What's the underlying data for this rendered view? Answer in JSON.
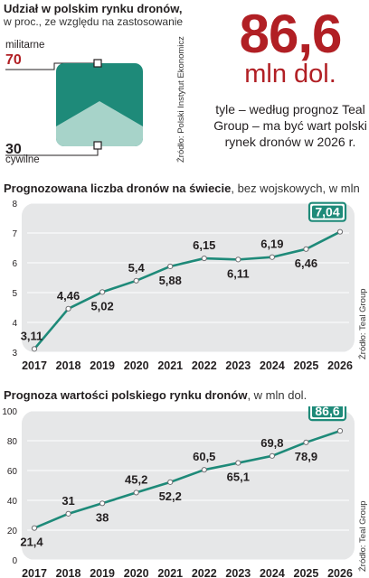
{
  "share": {
    "title_bold": "Udział w polskim rynku dronów,",
    "subtitle": "w proc., ze względu na zastosowanie",
    "military_label": "militarne",
    "military_value": "70",
    "civil_value": "30",
    "civil_label": "cywilne",
    "source": "Źródło: Polski Instytut Ekonomiczny",
    "colors": {
      "military": "#1e8a79",
      "civil": "#a7d3c9",
      "accent": "#b11f24"
    }
  },
  "headline": {
    "number": "86,6",
    "unit": "mln dol.",
    "description": "tyle – według prognoz Teal Group – ma być wart polski rynek dronów w 2026 r."
  },
  "chart1": {
    "title_bold": "Prognozowana liczba dronów na świecie",
    "title_rest": ", bez wojskowych, w mln",
    "source": "Źródło: Teal Group"
  },
  "chart2": {
    "title_bold": "Prognoza wartości polskiego rynku dronów",
    "title_rest": ", w mln dol.",
    "source": "Źródło: Teal Group"
  },
  "chart_data": [
    {
      "type": "line",
      "x": [
        2017,
        2018,
        2019,
        2020,
        2021,
        2022,
        2023,
        2024,
        2025,
        2026
      ],
      "values": [
        3.11,
        4.46,
        5.02,
        5.4,
        5.88,
        6.15,
        6.11,
        6.19,
        6.46,
        7.04
      ],
      "labels": [
        "3,11",
        "4,46",
        "5,02",
        "5,4",
        "5,88",
        "6,15",
        "6,11",
        "6,19",
        "6,46",
        "7,04"
      ],
      "ylim": [
        3,
        8
      ],
      "yticks": [
        3,
        4,
        5,
        6,
        7,
        8
      ],
      "highlight_last": true,
      "color": "#1e8a79"
    },
    {
      "type": "line",
      "x": [
        2017,
        2018,
        2019,
        2020,
        2021,
        2022,
        2023,
        2024,
        2025,
        2026
      ],
      "values": [
        21.4,
        31,
        38,
        45.2,
        52.2,
        60.5,
        65.1,
        69.8,
        78.9,
        86.6
      ],
      "labels": [
        "21,4",
        "31",
        "38",
        "45,2",
        "52,2",
        "60,5",
        "65,1",
        "69,8",
        "78,9",
        "86,6"
      ],
      "ylim": [
        0,
        100
      ],
      "yticks": [
        0,
        20,
        40,
        60,
        80,
        100
      ],
      "highlight_last": true,
      "color": "#1e8a79"
    }
  ]
}
